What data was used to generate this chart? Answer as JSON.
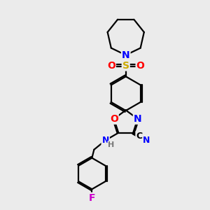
{
  "background_color": "#ebebeb",
  "atom_colors": {
    "C": "#000000",
    "N": "#0000ff",
    "O": "#ff0000",
    "S": "#ccaa00",
    "F": "#cc00cc",
    "H": "#777777"
  },
  "bond_color": "#000000",
  "bond_width": 1.6,
  "figsize": [
    3.0,
    3.0
  ],
  "dpi": 100
}
